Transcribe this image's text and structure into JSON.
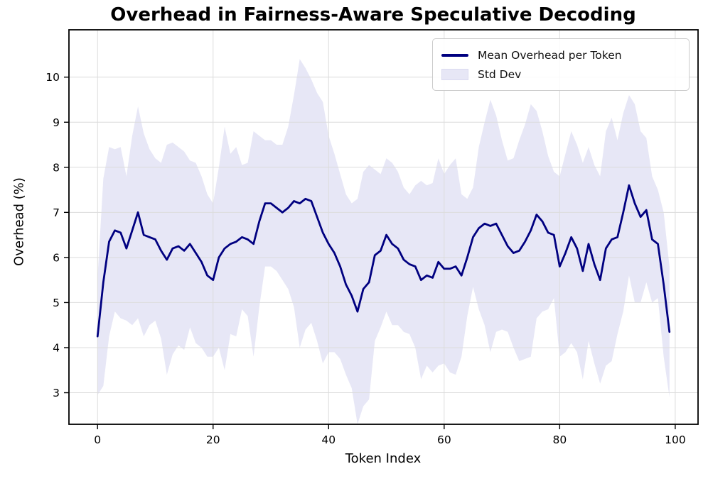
{
  "chart_data": {
    "type": "line",
    "title": "Overhead in Fairness-Aware Speculative Decoding",
    "xlabel": "Token Index",
    "ylabel": "Overhead (%)",
    "x_start": 0,
    "x_step": 1,
    "n_points": 100,
    "xlim": [
      -4.95,
      103.95
    ],
    "ylim": [
      2.3,
      11.05
    ],
    "xticks": [
      0,
      20,
      40,
      60,
      80,
      100
    ],
    "yticks": [
      3,
      4,
      5,
      6,
      7,
      8,
      9,
      10
    ],
    "grid": true,
    "grid_color": "#dcdcdc",
    "spine_color": "#000000",
    "background": "#ffffff",
    "legend_position": "upper right",
    "series": [
      {
        "name": "Mean Overhead per Token",
        "type": "line",
        "color": "#000080",
        "linewidth": 2.8,
        "values": [
          4.25,
          5.45,
          6.35,
          6.6,
          6.55,
          6.2,
          6.6,
          7.0,
          6.5,
          6.45,
          6.4,
          6.15,
          5.95,
          6.2,
          6.25,
          6.15,
          6.3,
          6.1,
          5.9,
          5.6,
          5.5,
          6.0,
          6.2,
          6.3,
          6.35,
          6.45,
          6.4,
          6.3,
          6.8,
          7.2,
          7.2,
          7.1,
          7.0,
          7.1,
          7.25,
          7.2,
          7.3,
          7.25,
          6.9,
          6.55,
          6.3,
          6.1,
          5.8,
          5.4,
          5.15,
          4.8,
          5.3,
          5.45,
          6.05,
          6.15,
          6.5,
          6.3,
          6.2,
          5.95,
          5.85,
          5.8,
          5.5,
          5.6,
          5.55,
          5.9,
          5.75,
          5.75,
          5.8,
          5.6,
          6.0,
          6.45,
          6.65,
          6.75,
          6.7,
          6.75,
          6.5,
          6.25,
          6.1,
          6.15,
          6.35,
          6.6,
          6.95,
          6.8,
          6.55,
          6.5,
          5.8,
          6.1,
          6.45,
          6.2,
          5.7,
          6.3,
          5.85,
          5.5,
          6.2,
          6.4,
          6.45,
          7.0,
          7.6,
          7.2,
          6.9,
          7.05,
          6.4,
          6.3,
          5.4,
          4.35
        ]
      },
      {
        "name": "Std Dev",
        "type": "band_mean_pm_std",
        "color": "#e7e7f6",
        "std_values": [
          1.3,
          2.3,
          2.1,
          1.8,
          1.9,
          1.6,
          2.1,
          2.35,
          2.25,
          1.95,
          1.8,
          1.95,
          2.55,
          2.35,
          2.2,
          2.2,
          1.85,
          2.0,
          1.9,
          1.8,
          1.7,
          2.0,
          2.7,
          2.0,
          2.1,
          1.6,
          1.7,
          2.5,
          1.9,
          1.4,
          1.4,
          1.4,
          1.5,
          1.8,
          2.35,
          3.2,
          2.9,
          2.7,
          2.75,
          2.9,
          2.4,
          2.2,
          2.05,
          2.0,
          2.05,
          2.5,
          2.6,
          2.6,
          1.9,
          1.7,
          1.7,
          1.8,
          1.7,
          1.6,
          1.55,
          1.8,
          2.2,
          2.0,
          2.1,
          2.3,
          2.1,
          2.3,
          2.4,
          1.8,
          1.3,
          1.1,
          1.8,
          2.25,
          2.8,
          2.4,
          2.1,
          1.9,
          2.1,
          2.45,
          2.6,
          2.8,
          2.3,
          2.0,
          1.7,
          1.4,
          2.0,
          2.2,
          2.35,
          2.3,
          2.4,
          2.15,
          2.2,
          2.3,
          2.6,
          2.7,
          2.15,
          2.2,
          2.0,
          2.2,
          1.9,
          1.6,
          1.4,
          1.2,
          1.6,
          1.45
        ]
      }
    ]
  }
}
